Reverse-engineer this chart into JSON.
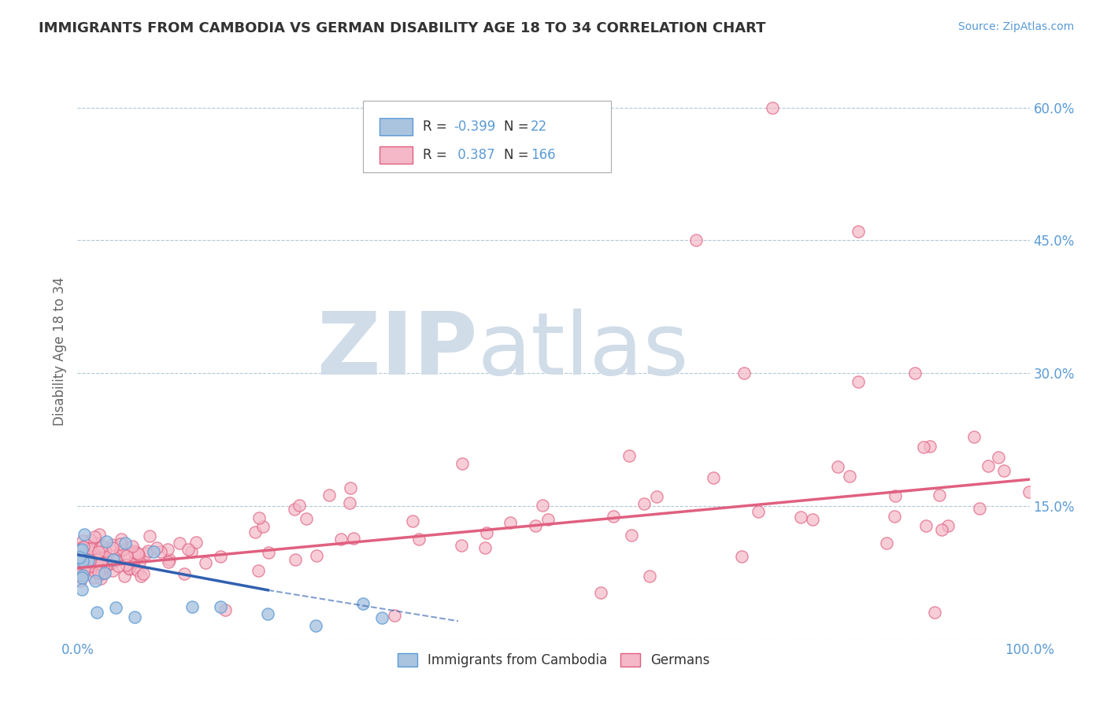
{
  "title": "IMMIGRANTS FROM CAMBODIA VS GERMAN DISABILITY AGE 18 TO 34 CORRELATION CHART",
  "source_text": "Source: ZipAtlas.com",
  "ylabel": "Disability Age 18 to 34",
  "x_min": 0.0,
  "x_max": 1.0,
  "y_min": 0.0,
  "y_max": 0.65,
  "x_ticks": [
    0.0,
    0.25,
    0.5,
    0.75,
    1.0
  ],
  "x_tick_labels": [
    "0.0%",
    "",
    "",
    "",
    "100.0%"
  ],
  "y_ticks": [
    0.0,
    0.15,
    0.3,
    0.45,
    0.6
  ],
  "y_tick_labels": [
    "",
    "15.0%",
    "30.0%",
    "45.0%",
    "60.0%"
  ],
  "cambodia_color": "#aac4e0",
  "cambodia_edge_color": "#5b9bd5",
  "german_color": "#f4b8c8",
  "german_edge_color": "#e06080",
  "cambodia_trend_color": "#3060b0",
  "german_trend_color": "#e06080",
  "background_color": "#ffffff",
  "grid_color": "#b0c8d8",
  "legend_r_cambodia": "-0.399",
  "legend_n_cambodia": "22",
  "legend_r_german": "0.387",
  "legend_n_german": "166",
  "watermark_zip": "ZIP",
  "watermark_atlas": "atlas",
  "watermark_color": "#d0dce8",
  "label_color": "#5b9bd5",
  "title_color": "#333333"
}
